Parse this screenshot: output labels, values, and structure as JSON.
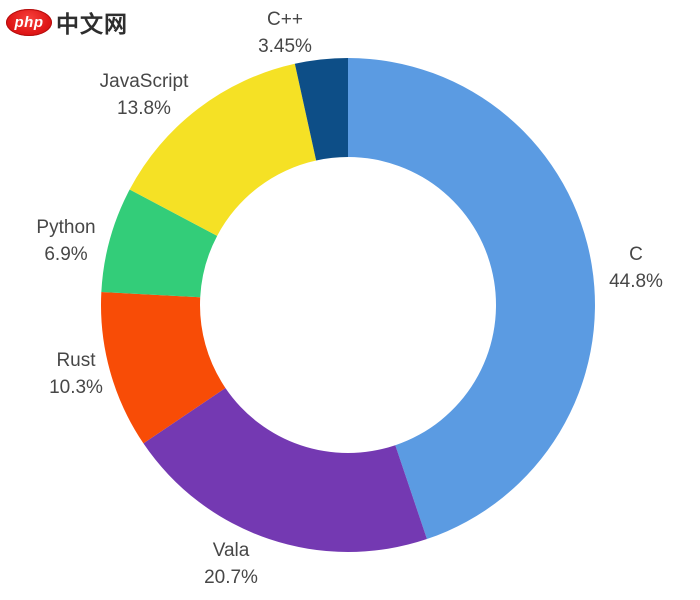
{
  "logo": {
    "badge_text": "php",
    "site_text": "中文网",
    "badge_color": "#e01717",
    "site_text_color": "#2e2e2e"
  },
  "chart_data": {
    "type": "pie",
    "subtype": "donut",
    "title": "",
    "legend": "none",
    "start_angle": "12 o'clock, clockwise",
    "categories": [
      "C",
      "Vala",
      "Rust",
      "Python",
      "JavaScript",
      "C++"
    ],
    "values": [
      44.8,
      20.7,
      10.3,
      6.9,
      13.8,
      3.45
    ],
    "value_labels": [
      "44.8%",
      "20.7%",
      "10.3%",
      "6.9%",
      "13.8%",
      "3.45%"
    ],
    "colors": [
      "#5b9be2",
      "#7439b2",
      "#f84c06",
      "#33cd79",
      "#f5e125",
      "#0d4e87"
    ],
    "label_color": "#474747",
    "hole_color": "#ffffff"
  }
}
